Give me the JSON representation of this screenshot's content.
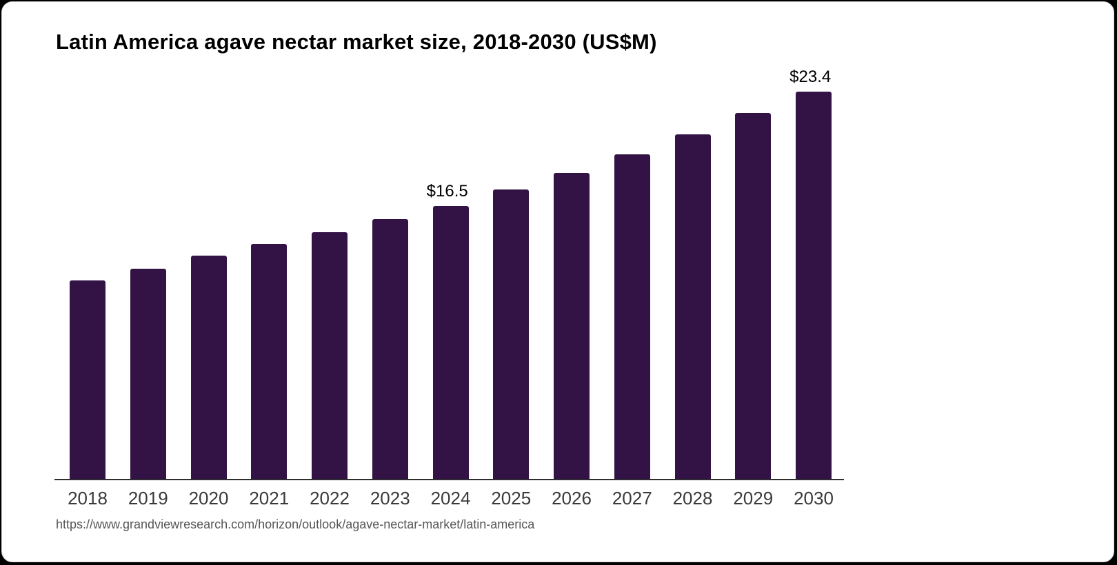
{
  "chart_data": {
    "type": "bar",
    "title": "Latin America agave nectar market size, 2018-2030 (US$M)",
    "categories": [
      "2018",
      "2019",
      "2020",
      "2021",
      "2022",
      "2023",
      "2024",
      "2025",
      "2026",
      "2027",
      "2028",
      "2029",
      "2030"
    ],
    "values": [
      12.0,
      12.7,
      13.5,
      14.2,
      14.9,
      15.7,
      16.5,
      17.5,
      18.5,
      19.6,
      20.8,
      22.1,
      23.4
    ],
    "bar_labels": [
      "",
      "",
      "",
      "",
      "",
      "",
      "$16.5",
      "",
      "",
      "",
      "",
      "",
      "$23.4"
    ],
    "xlabel": "",
    "ylabel": "",
    "ylim": [
      0,
      23.4
    ],
    "grid": false,
    "legend": false,
    "bar_color": "#331345",
    "axis_color": "#2e2e2e",
    "tick_color": "#3a3a3a",
    "label_color": "#000000"
  },
  "source": {
    "url": "https://www.grandviewresearch.com/horizon/outlook/agave-nectar-market/latin-america"
  }
}
